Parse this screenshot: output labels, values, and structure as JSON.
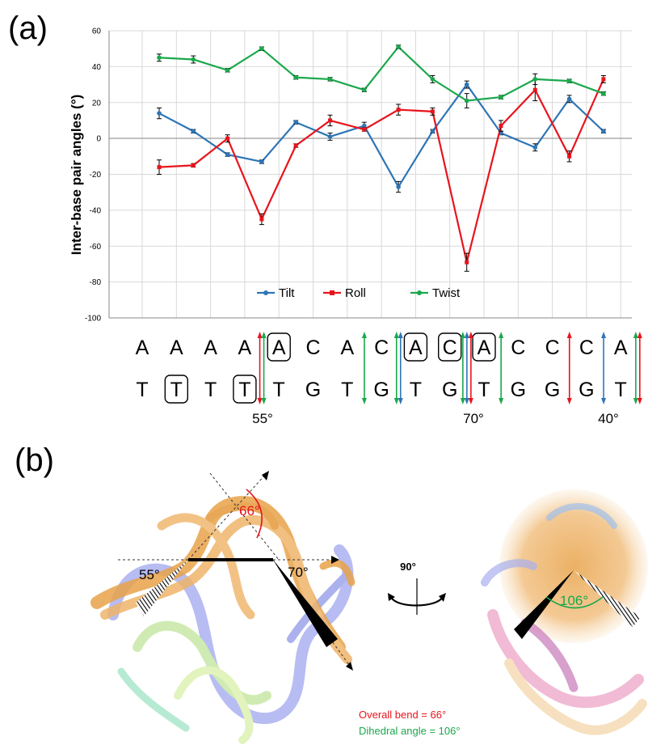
{
  "panels": {
    "a": "(a)",
    "b": "(b)"
  },
  "colors": {
    "tilt": "#2e75b6",
    "roll": "#e8141c",
    "twist": "#1aa84b",
    "protein": "#e8a34a"
  },
  "chart_data": {
    "type": "line",
    "x": [
      1,
      2,
      3,
      4,
      5,
      6,
      7,
      8,
      9,
      10,
      11,
      12,
      13,
      14
    ],
    "ylabel": "Inter-base pair angles (°)",
    "ylim": [
      -100,
      60
    ],
    "yticks": [
      -100,
      -80,
      -60,
      -40,
      -20,
      0,
      20,
      40,
      60
    ],
    "grid": true,
    "legend_position": "bottom-center",
    "series": [
      {
        "name": "Tilt",
        "color": "#2e75b6",
        "values": [
          14,
          4,
          -9,
          -13,
          9,
          1,
          7,
          -27,
          4,
          30,
          3,
          -5,
          22,
          4
        ],
        "errors": [
          3,
          1,
          1,
          1,
          1,
          2,
          2,
          3,
          1,
          2,
          1,
          2,
          2,
          1
        ]
      },
      {
        "name": "Roll",
        "color": "#e8141c",
        "values": [
          -16,
          -15,
          0,
          -45,
          -4,
          10,
          5,
          16,
          15,
          -69,
          7,
          27,
          -10,
          33
        ],
        "errors": [
          4,
          1,
          2,
          3,
          1,
          3,
          1,
          3,
          2,
          5,
          3,
          6,
          3,
          2
        ]
      },
      {
        "name": "Twist",
        "color": "#1aa84b",
        "values": [
          45,
          44,
          38,
          50,
          34,
          33,
          27,
          51,
          33,
          21,
          23,
          33,
          32,
          25
        ],
        "errors": [
          2,
          2,
          1,
          1,
          1,
          1,
          1,
          1,
          2,
          4,
          1,
          3,
          1,
          1
        ]
      }
    ]
  },
  "sequence": {
    "top": [
      "A",
      "A",
      "A",
      "A",
      "A",
      "C",
      "A",
      "C",
      "A",
      "C",
      "A",
      "C",
      "C",
      "C",
      "A"
    ],
    "bottom": [
      "T",
      "T",
      "T",
      "T",
      "T",
      "G",
      "T",
      "G",
      "T",
      "G",
      "T",
      "G",
      "G",
      "G",
      "T"
    ],
    "boxed_top": [
      4,
      8,
      9,
      10
    ],
    "boxed_bottom": [
      1,
      3
    ],
    "markers": [
      {
        "gap": 3,
        "colors": [
          "#e8141c",
          "#1aa84b"
        ]
      },
      {
        "gap": 6,
        "colors": [
          "#1aa84b"
        ]
      },
      {
        "gap": 7,
        "colors": [
          "#1aa84b",
          "#2e75b6"
        ]
      },
      {
        "gap": 9,
        "colors": [
          "#1aa84b",
          "#2e75b6",
          "#e8141c"
        ]
      },
      {
        "gap": 10,
        "colors": [
          "#1aa84b"
        ]
      },
      {
        "gap": 12,
        "colors": [
          "#e8141c"
        ]
      },
      {
        "gap": 13,
        "colors": [
          "#2e75b6"
        ]
      },
      {
        "gap": 14,
        "colors": [
          "#1aa84b",
          "#e8141c"
        ]
      }
    ],
    "angle_labels": [
      "55°",
      "70°",
      "40°"
    ]
  },
  "structure": {
    "bend_label": "66°",
    "left_angle": "55°",
    "right_angle": "70°",
    "rotation_label": "90°",
    "dihedral_label": "106°",
    "note_bend": "Overall bend = 66°",
    "note_dihedral": "Dihedral angle = 106°"
  }
}
